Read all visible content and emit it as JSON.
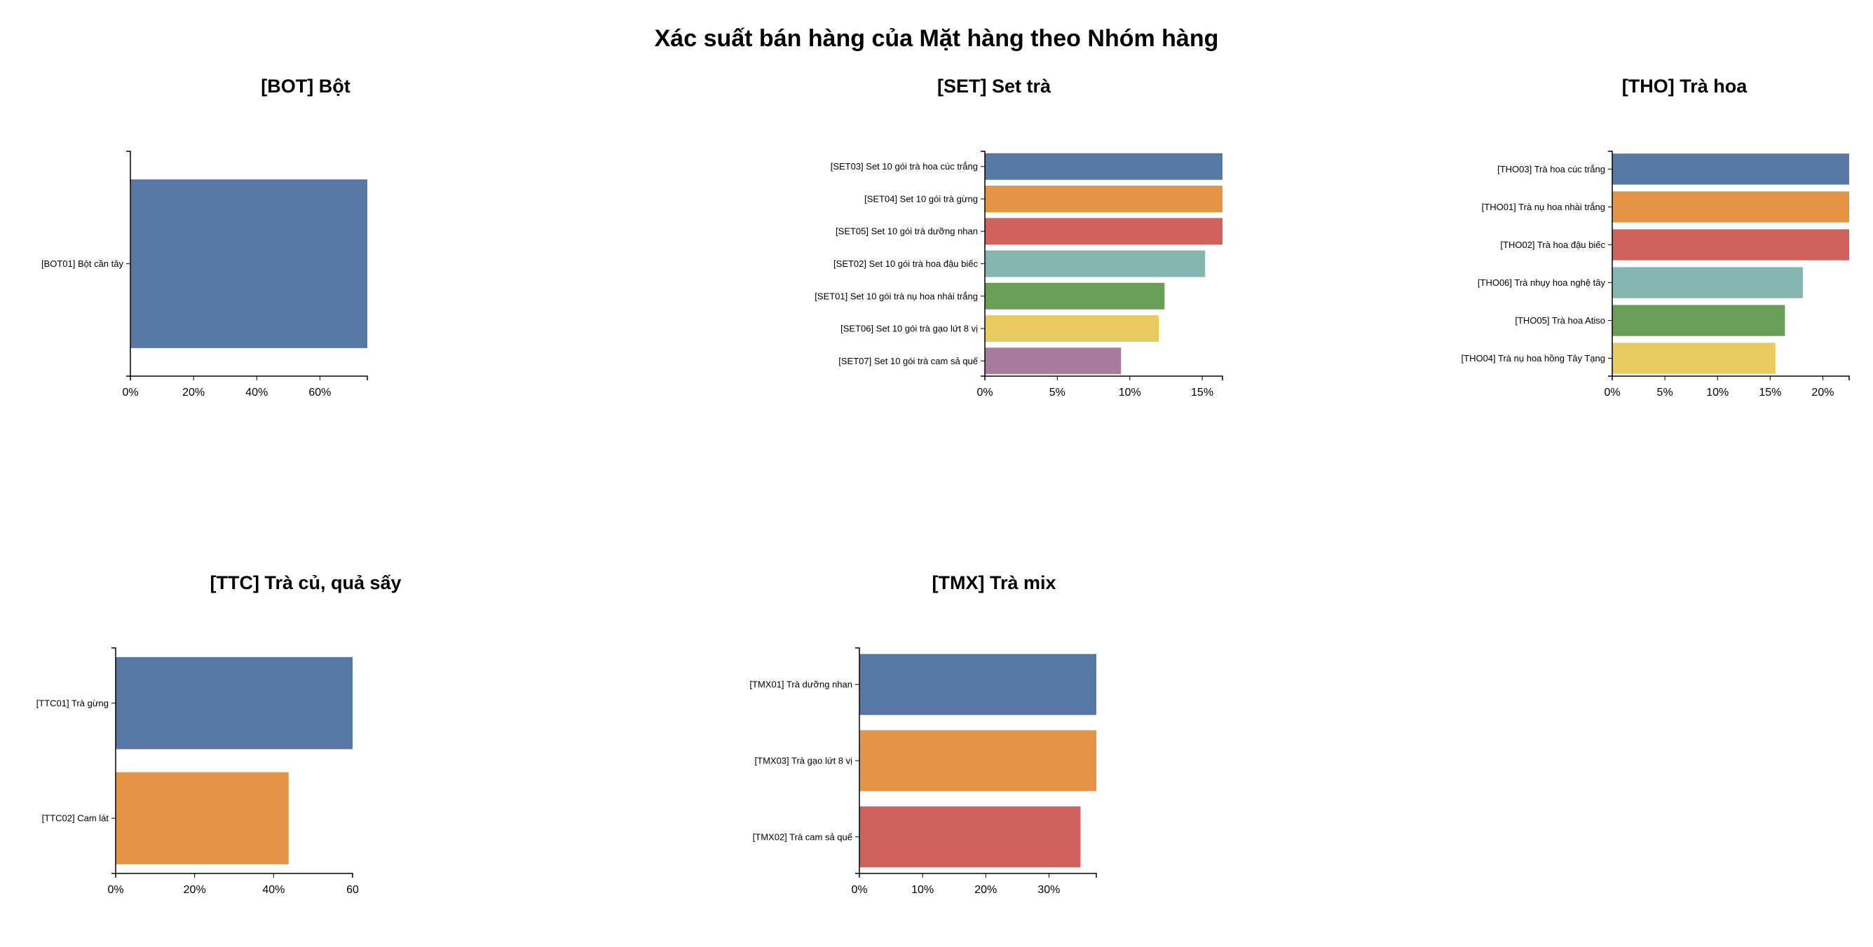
{
  "title": "Xác suất bán hàng của Mặt hàng theo Nhóm hàng",
  "colors": [
    "#5778a4",
    "#e49444",
    "#d1615d",
    "#85b6b2",
    "#6a9f58",
    "#e7ca60",
    "#a87c9f"
  ],
  "chart_data": [
    {
      "type": "bar",
      "orientation": "horizontal",
      "title": "[BOT] Bột",
      "categories": [
        "[BOT01] Bột cần tây"
      ],
      "values": [
        75
      ],
      "xlim": [
        0,
        75
      ],
      "xticks": [
        0,
        20,
        40,
        60
      ],
      "xtick_labels": [
        "0%",
        "20%",
        "40%",
        "60%"
      ]
    },
    {
      "type": "bar",
      "orientation": "horizontal",
      "title": "[SET] Set trà",
      "categories": [
        "[SET03] Set 10 gói trà hoa cúc trắng",
        "[SET04] Set 10 gói trà gừng",
        "[SET05] Set 10 gói trà dưỡng nhan",
        "[SET02] Set 10 gói trà hoa đậu biếc",
        "[SET01] Set 10 gói trà nụ hoa nhài trắng",
        "[SET06] Set 10 gói trà gạo lứt 8 vị",
        "[SET07] Set 10 gói trà cam sả quế"
      ],
      "values": [
        16.4,
        16.4,
        16.4,
        15.2,
        12.4,
        12.0,
        9.4
      ],
      "xlim": [
        0,
        16.4
      ],
      "xticks": [
        0,
        5,
        10,
        15
      ],
      "xtick_labels": [
        "0%",
        "5%",
        "10%",
        "15%"
      ]
    },
    {
      "type": "bar",
      "orientation": "horizontal",
      "title": "[THO] Trà hoa",
      "categories": [
        "[THO03] Trà hoa cúc trắng",
        "[THO01] Trà nụ hoa nhài trắng",
        "[THO02] Trà hoa đậu biếc",
        "[THO06] Trà nhụy hoa nghệ tây",
        "[THO05] Trà hoa Atiso",
        "[THO04] Trà nụ hoa hồng Tây Tạng"
      ],
      "values": [
        22.5,
        22.5,
        22.5,
        18.1,
        16.4,
        15.5
      ],
      "xlim": [
        0,
        22.5
      ],
      "xticks": [
        0,
        5,
        10,
        15,
        20
      ],
      "xtick_labels": [
        "0%",
        "5%",
        "10%",
        "15%",
        "20%"
      ]
    },
    {
      "type": "bar",
      "orientation": "horizontal",
      "title": "[TTC] Trà củ, quả sấy",
      "categories": [
        "[TTC01] Trà gừng",
        "[TTC02] Cam lát"
      ],
      "values": [
        60,
        43.8
      ],
      "xlim": [
        0,
        60
      ],
      "xticks": [
        0,
        20,
        40,
        60
      ],
      "xtick_labels": [
        "0%",
        "20%",
        "40%",
        "60"
      ]
    },
    {
      "type": "bar",
      "orientation": "horizontal",
      "title": "[TMX] Trà mix",
      "categories": [
        "[TMX01] Trà dưỡng nhan",
        "[TMX03] Trà gạo lứt 8 vị",
        "[TMX02] Trà cam sả quế"
      ],
      "values": [
        37.5,
        37.5,
        35.0
      ],
      "xlim": [
        0,
        37.5
      ],
      "xticks": [
        0,
        10,
        20,
        30
      ],
      "xtick_labels": [
        "0%",
        "10%",
        "20%",
        "30%"
      ]
    }
  ]
}
